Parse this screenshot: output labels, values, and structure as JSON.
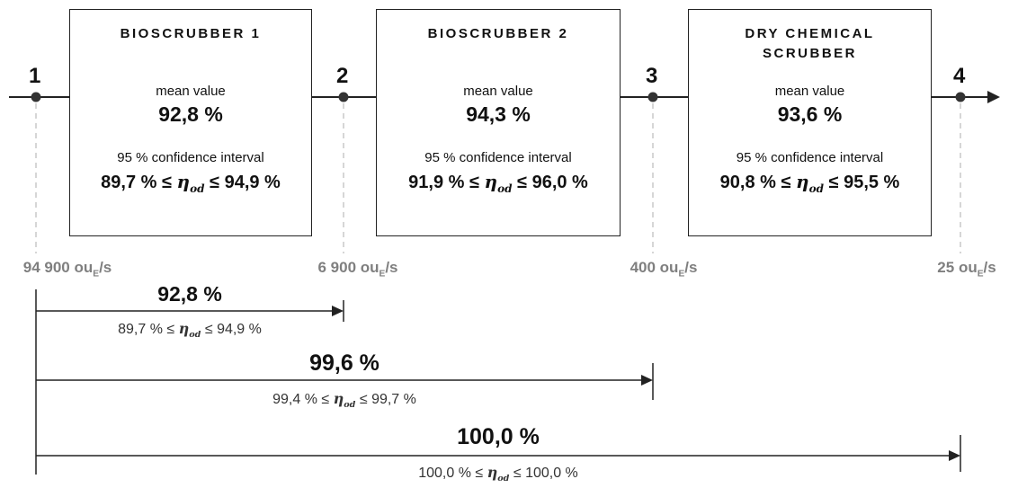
{
  "stages": [
    {
      "title": "BIOSCRUBBER 1",
      "mean_label": "mean value",
      "mean": "92,8 %",
      "ci_label": "95 % confidence interval",
      "ci_low": "89,7 %",
      "ci_high": "94,9 %"
    },
    {
      "title": "BIOSCRUBBER 2",
      "mean_label": "mean value",
      "mean": "94,3 %",
      "ci_label": "95 % confidence interval",
      "ci_low": "91,9 %",
      "ci_high": "96,0 %"
    },
    {
      "title": "DRY CHEMICAL\nSCRUBBER",
      "mean_label": "mean value",
      "mean": "93,6 %",
      "ci_label": "95 % confidence interval",
      "ci_low": "90,8 %",
      "ci_high": "95,5 %"
    }
  ],
  "nodes": [
    {
      "number": "1",
      "flow_value": "94 900",
      "flow_unit": "ou",
      "flow_sub": "E",
      "flow_suffix": "/s"
    },
    {
      "number": "2",
      "flow_value": "6 900",
      "flow_unit": "ou",
      "flow_sub": "E",
      "flow_suffix": "/s"
    },
    {
      "number": "3",
      "flow_value": "400",
      "flow_unit": "ou",
      "flow_sub": "E",
      "flow_suffix": "/s"
    },
    {
      "number": "4",
      "flow_value": "25",
      "flow_unit": "ou",
      "flow_sub": "E",
      "flow_suffix": "/s"
    }
  ],
  "cumulative": [
    {
      "value": "92,8 %",
      "ci_low": "89,7 %",
      "ci_high": "94,9 %"
    },
    {
      "value": "99,6 %",
      "ci_low": "99,4 %",
      "ci_high": "99,7 %"
    },
    {
      "value": "100,0 %",
      "ci_low": "100,0 %",
      "ci_high": "100,0 %"
    }
  ],
  "eta_symbol": "η",
  "eta_subscript": "od",
  "leq": "≤",
  "colors": {
    "line": "#222222",
    "dashed": "#c8c8c8",
    "flow_text": "#7f7f7f"
  }
}
